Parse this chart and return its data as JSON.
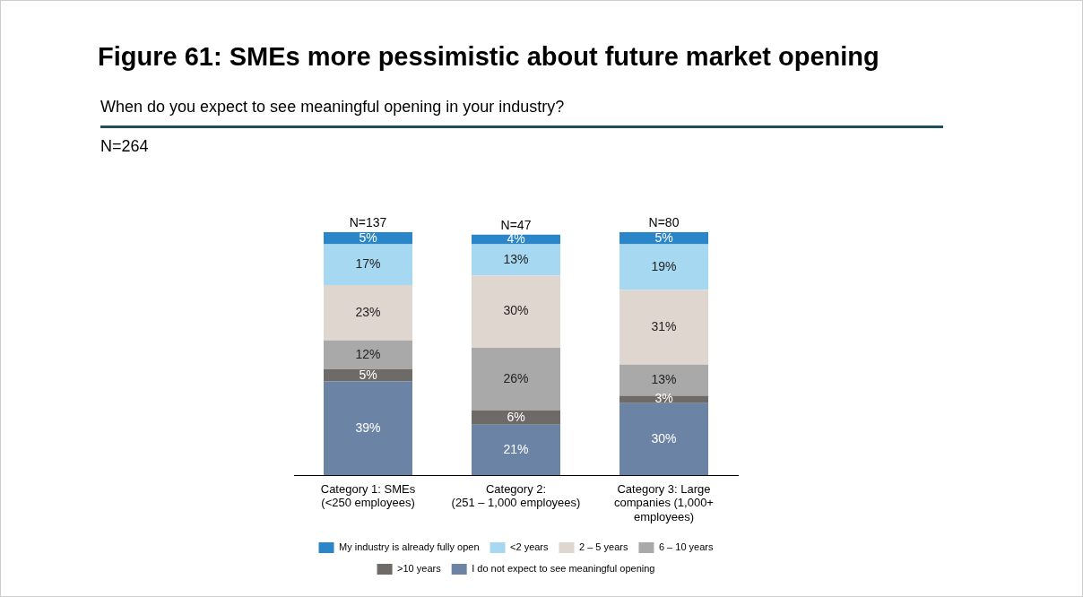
{
  "chart_data": {
    "type": "bar",
    "title": "Figure 61: SMEs more pessimistic about future market opening",
    "subtitle": "When do you expect to see meaningful opening in your industry?",
    "categories": [
      "Category 1: SMEs (<250 employees)",
      "Category 2: (251 – 1,000 employees)",
      "Category 3: Large companies (1,000+ employees)"
    ],
    "stacked": true,
    "grid": false,
    "legend": "bottom",
    "tick_labels": "x",
    "series": [
      {
        "name": "I do not expect to see meaningful opening",
        "color": "#6b84a5",
        "values": [
          39,
          21,
          30
        ],
        "value_labels": [
          "39%",
          "21%",
          "30%"
        ]
      },
      {
        "name": ">10 years",
        "color": "#6e6a68",
        "values": [
          5,
          6,
          3
        ],
        "value_labels": [
          "5%",
          "6%",
          "3%"
        ]
      },
      {
        "name": "6 – 10 years",
        "color": "#a9a9a9",
        "values": [
          12,
          26,
          13
        ],
        "value_labels": [
          "12%",
          "26%",
          "13%"
        ]
      },
      {
        "name": "2 – 5 years",
        "color": "#e0d6d0",
        "values": [
          23,
          30,
          31
        ],
        "value_labels": [
          "23%",
          "30%",
          "31%"
        ]
      },
      {
        "name": "<2 years",
        "color": "#a6d8f2",
        "values": [
          17,
          13,
          19
        ],
        "value_labels": [
          "17%",
          "13%",
          "19%"
        ]
      },
      {
        "name": "My industry is already fully open",
        "color": "#2a86c8",
        "values": [
          5,
          4,
          5
        ],
        "value_labels": [
          "5%",
          "4%",
          "5%"
        ]
      }
    ],
    "annotations": [
      "N=264",
      "N=137",
      "N=47",
      "N=80"
    ]
  }
}
